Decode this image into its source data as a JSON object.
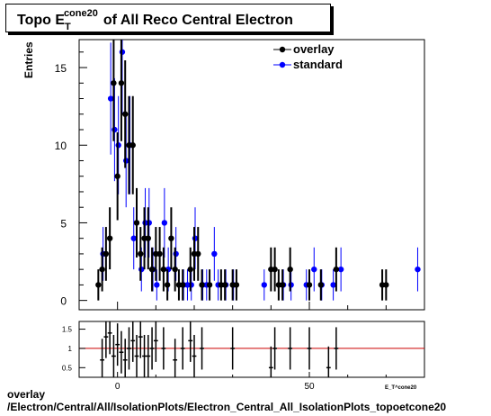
{
  "title": {
    "prefix": "Topo E",
    "subscript": "T",
    "superscript": "cone20",
    "suffix": "of All Reco Central  Electron"
  },
  "footer": {
    "line1": "overlay",
    "line2": "/Electron/Central/All/IsolationPlots/Electron_Central_All_IsolationPlots_topoetcone20"
  },
  "colors": {
    "overlay": "#000000",
    "standard": "#0000ff",
    "ratio_line": "#cc0000"
  },
  "chart_data": [
    {
      "type": "scatter",
      "ylabel": "Entries",
      "xlim": [
        -10,
        80
      ],
      "ylim": [
        -0.6,
        16.8
      ],
      "y_ticks": [
        0,
        5,
        10,
        15
      ],
      "x_ticks": [
        0,
        50
      ],
      "legend": {
        "position": "top-right",
        "entries": [
          "overlay",
          "standard"
        ]
      },
      "series": [
        {
          "name": "overlay",
          "x": [
            -5,
            -4,
            -3,
            -2,
            -1,
            0,
            1,
            2,
            3,
            4,
            5,
            6,
            7,
            8,
            9,
            10,
            11,
            12,
            13,
            14,
            15,
            16,
            17,
            19,
            20,
            21,
            22,
            24,
            27,
            28,
            30,
            31,
            40,
            41,
            42,
            43,
            45,
            50,
            53,
            57,
            69,
            70
          ],
          "y": [
            1,
            2,
            3,
            4,
            14,
            8,
            14,
            12,
            10,
            10,
            5,
            3,
            4,
            4,
            2,
            3,
            3,
            2,
            1,
            4,
            2,
            1,
            1,
            2,
            3,
            3,
            1,
            1,
            1,
            1,
            1,
            1,
            2,
            2,
            1,
            1,
            2,
            1,
            1,
            2,
            1,
            1
          ]
        },
        {
          "name": "standard",
          "x": [
            -4,
            -2,
            -1,
            0,
            1,
            2,
            3,
            4,
            6,
            7,
            8,
            9,
            10,
            12,
            13,
            15,
            17,
            18,
            19,
            20,
            22,
            23,
            25,
            26,
            28,
            30,
            38,
            43,
            45,
            49,
            51,
            53,
            56,
            58,
            78
          ],
          "y": [
            3,
            13,
            11,
            10,
            16,
            9,
            10,
            4,
            2,
            5,
            5,
            2,
            1,
            5,
            2,
            3,
            1,
            1,
            1,
            4,
            1,
            1,
            3,
            1,
            1,
            1,
            1,
            1,
            1,
            1,
            2,
            1,
            1,
            2,
            2
          ]
        }
      ]
    },
    {
      "type": "scatter",
      "xlim": [
        -10,
        80
      ],
      "ylim": [
        0.25,
        1.7
      ],
      "y_ticks": [
        0.5,
        1,
        1.5
      ],
      "x_ticks": [
        0,
        50
      ],
      "xlabel": "E_T^cone20",
      "reference_line": 1,
      "series": [
        {
          "name": "ratio",
          "x": [
            -4,
            -3,
            -2,
            -1,
            0,
            1,
            2,
            3,
            4,
            5,
            6,
            7,
            8,
            9,
            10,
            12,
            15,
            17,
            19,
            20,
            22,
            30,
            40,
            41,
            45,
            50,
            55,
            57
          ],
          "y": [
            0.7,
            1.3,
            1.4,
            0.8,
            1.1,
            0.9,
            0.7,
            1.0,
            1.2,
            0.8,
            1.3,
            0.8,
            0.8,
            1.0,
            1.2,
            1.0,
            0.7,
            1.0,
            1.2,
            0.8,
            1.0,
            1.0,
            0.5,
            1.0,
            1.0,
            1.0,
            0.5,
            1.0
          ]
        }
      ]
    }
  ]
}
